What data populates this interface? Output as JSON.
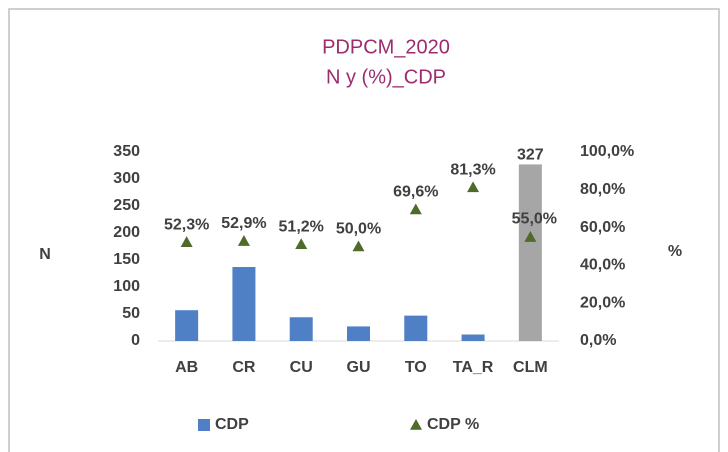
{
  "chart_data": {
    "type": "bar_line",
    "title": "PDPCM_2020",
    "subtitle": "N y (%)_CDP",
    "ylabel": "N",
    "y2label": "%",
    "categories": [
      "AB",
      "CR",
      "CU",
      "GU",
      "TO",
      "TA_R",
      "CLM"
    ],
    "series": [
      {
        "name": "CDP",
        "color": "#4f7fc4",
        "colors": [
          "#4f7fc4",
          "#4f7fc4",
          "#4f7fc4",
          "#4f7fc4",
          "#4f7fc4",
          "#4f7fc4",
          "#a6a6a6"
        ],
        "values": [
          57,
          137,
          44,
          27,
          47,
          12,
          327
        ],
        "value_labels": [
          null,
          null,
          null,
          null,
          null,
          null,
          "327"
        ]
      },
      {
        "name": "CDP %",
        "color": "#4e6b2a",
        "axis": "y2",
        "marker": "triangle",
        "values": [
          52.3,
          52.9,
          51.2,
          50.0,
          69.6,
          81.3,
          55.0
        ],
        "value_labels": [
          "52,3%",
          "52,9%",
          "51,2%",
          "50,0%",
          "69,6%",
          "81,3%",
          "55,0%"
        ]
      }
    ],
    "ylim": [
      0,
      350
    ],
    "yticks": [
      0,
      50,
      100,
      150,
      200,
      250,
      300,
      350
    ],
    "y2lim": [
      0,
      100
    ],
    "y2ticks": [
      {
        "value": 0,
        "label": "0,0%"
      },
      {
        "value": 20,
        "label": "20,0%"
      },
      {
        "value": 40,
        "label": "40,0%"
      },
      {
        "value": 60,
        "label": "60,0%"
      },
      {
        "value": 80,
        "label": "80,0%"
      },
      {
        "value": 100,
        "label": "100,0%"
      }
    ],
    "grid": false,
    "legend": "bottom"
  }
}
